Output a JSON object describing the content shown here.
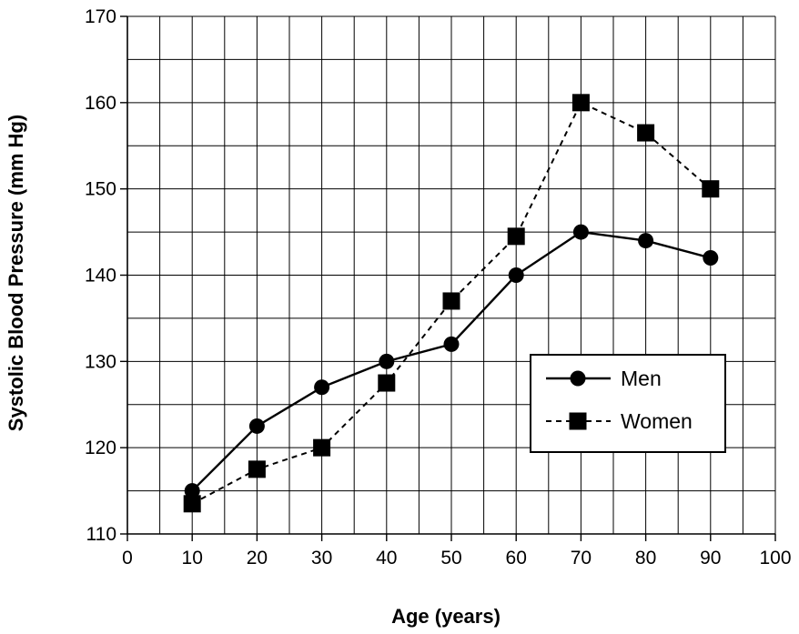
{
  "chart_data": {
    "type": "line",
    "xlabel": "Age (years)",
    "ylabel": "Systolic Blood Pressure (mm Hg)",
    "xlim": [
      0,
      100
    ],
    "ylim": [
      110,
      170
    ],
    "x_ticks": [
      0,
      10,
      20,
      30,
      40,
      50,
      60,
      70,
      80,
      90,
      100
    ],
    "y_ticks": [
      110,
      120,
      130,
      140,
      150,
      160,
      170
    ],
    "grid": "on",
    "legend_position": "lower-right",
    "x": [
      10,
      20,
      30,
      40,
      50,
      60,
      70,
      80,
      90
    ],
    "series": [
      {
        "name": "Men",
        "marker": "circle",
        "line_style": "solid",
        "color": "#000000",
        "values": [
          115,
          122.5,
          127,
          130,
          132,
          140,
          145,
          144,
          142
        ]
      },
      {
        "name": "Women",
        "marker": "square",
        "line_style": "dashed",
        "color": "#000000",
        "values": [
          113.5,
          117.5,
          120,
          127.5,
          137,
          144.5,
          160,
          156.5,
          150
        ]
      }
    ]
  }
}
